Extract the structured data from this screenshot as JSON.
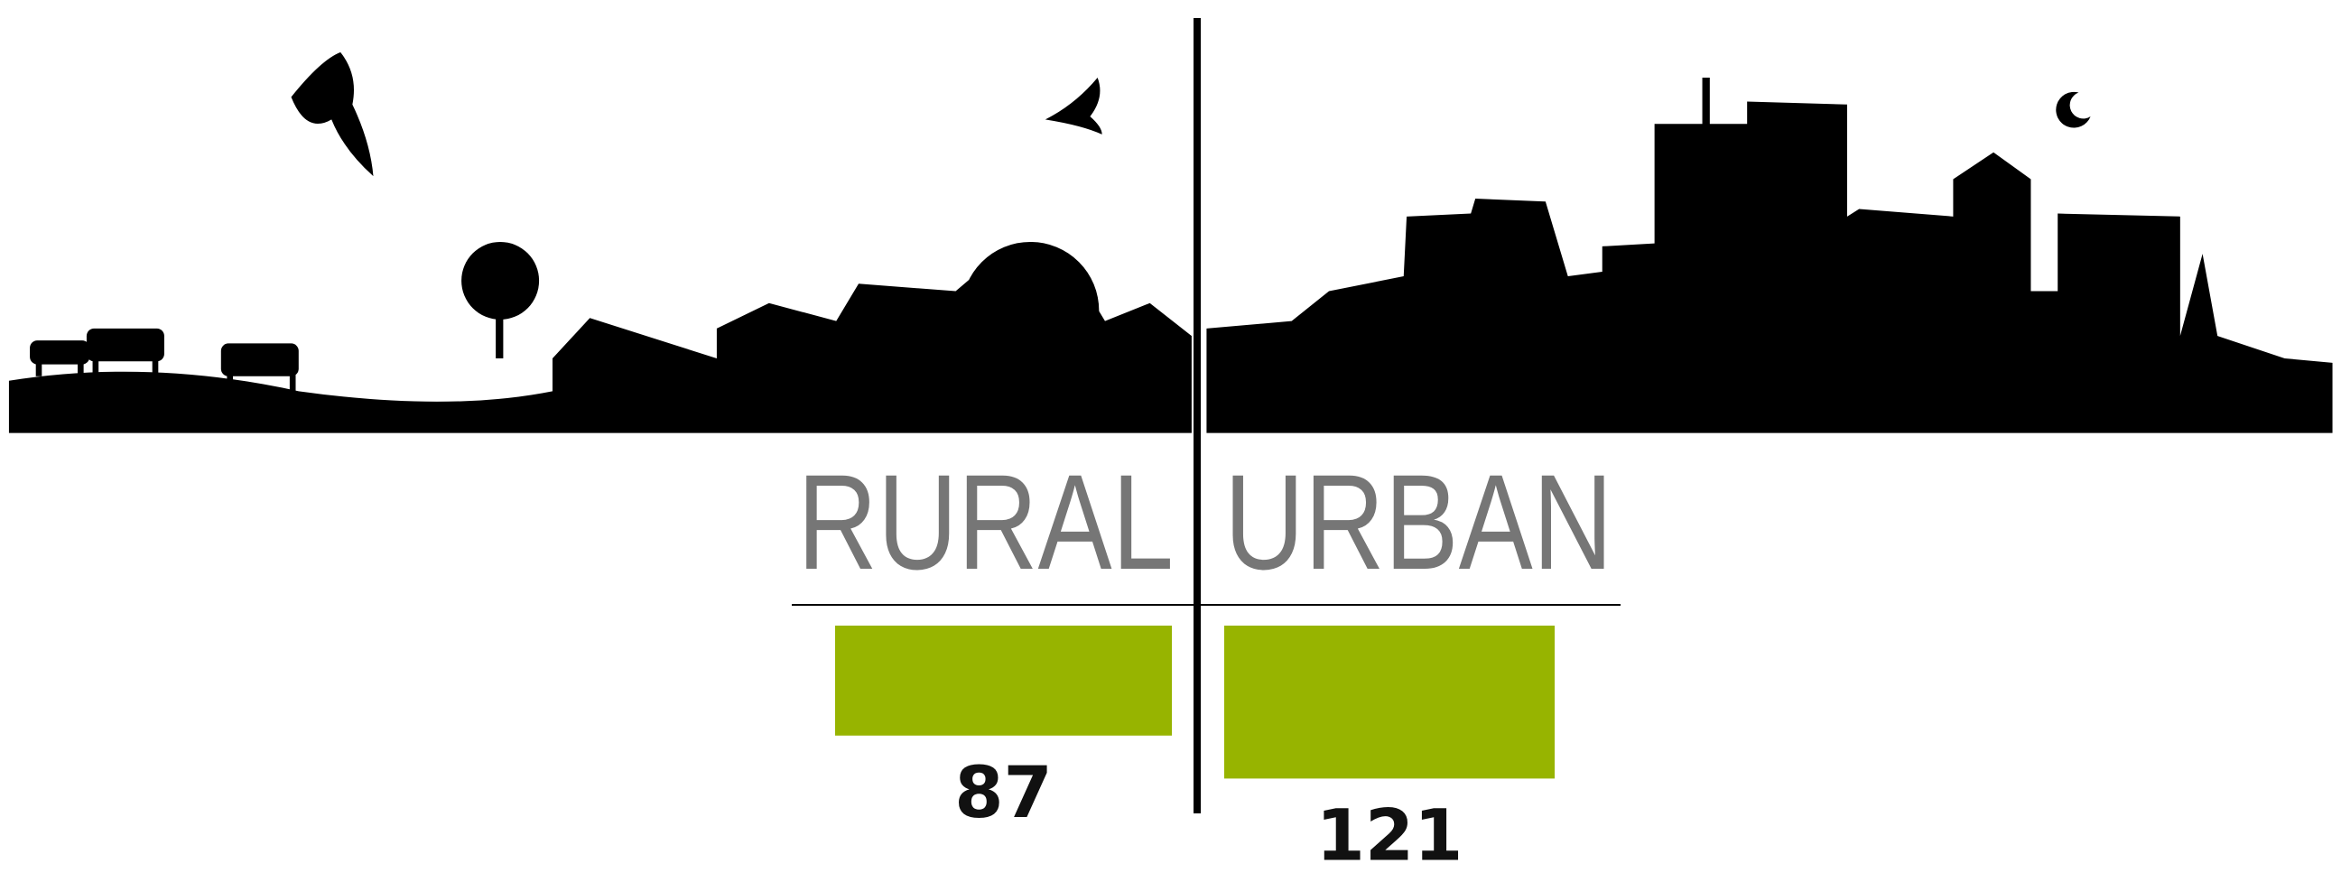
{
  "chart_data": {
    "type": "bar",
    "categories": [
      "RURAL",
      "URBAN"
    ],
    "values": [
      87,
      121
    ],
    "color": "#97b400"
  }
}
